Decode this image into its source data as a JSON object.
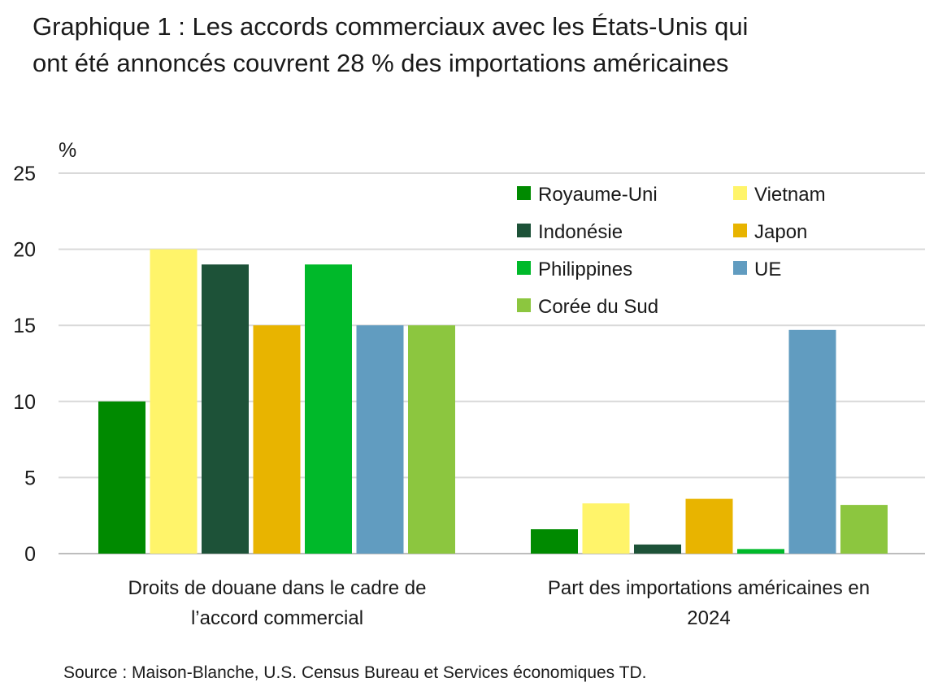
{
  "title": "Graphique 1 : Les accords commerciaux avec les États-Unis qui ont été annoncés couvrent 28 % des importations américaines",
  "source": "Source : Maison-Blanche, U.S. Census Bureau et Services économiques TD.",
  "chart_data": {
    "type": "bar",
    "title": "Graphique 1 : Les accords commerciaux avec les États-Unis qui ont été annoncés couvrent 28 % des importations américaines",
    "ylabel": "%",
    "xlabel": "",
    "ylim": [
      0,
      25
    ],
    "yticks": [
      0,
      5,
      10,
      15,
      20,
      25
    ],
    "grid": true,
    "legend_position": "top-right",
    "categories": [
      [
        "Droits de douane dans le cadre de",
        "l’accord commercial"
      ],
      [
        "Part des importations américaines en",
        "2024"
      ]
    ],
    "series": [
      {
        "name": "Royaume-Uni",
        "color": "#008a00",
        "values": [
          10,
          1.6
        ]
      },
      {
        "name": "Vietnam",
        "color": "#fff46a",
        "values": [
          20,
          3.3
        ]
      },
      {
        "name": "Indonésie",
        "color": "#1d5238",
        "values": [
          19,
          0.6
        ]
      },
      {
        "name": "Japon",
        "color": "#e8b400",
        "values": [
          15,
          3.6
        ]
      },
      {
        "name": "Philippines",
        "color": "#00b92a",
        "values": [
          19,
          0.3
        ]
      },
      {
        "name": "UE",
        "color": "#619cc0",
        "values": [
          15,
          14.7
        ]
      },
      {
        "name": "Corée du Sud",
        "color": "#8cc63f",
        "values": [
          15,
          3.2
        ]
      }
    ]
  }
}
